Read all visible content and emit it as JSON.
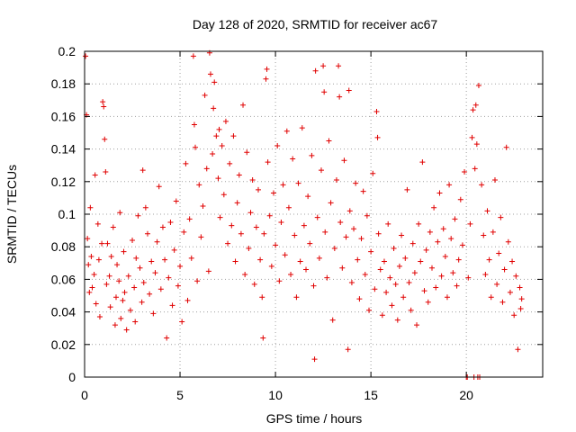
{
  "chart_data": {
    "type": "scatter",
    "title": "Day 128 of 2020, SRMTID for receiver ac67",
    "xlabel": "GPS time / hours",
    "ylabel": "SRMTID / TECUs",
    "xlim": [
      0,
      24
    ],
    "ylim": [
      0,
      0.2
    ],
    "x_ticks": [
      0,
      5,
      10,
      15,
      20
    ],
    "x_tick_labels": [
      "0",
      "5",
      "10",
      "15",
      "20"
    ],
    "y_ticks": [
      0,
      0.02,
      0.04,
      0.06,
      0.08,
      0.1,
      0.12,
      0.14,
      0.16,
      0.18,
      0.2
    ],
    "y_tick_labels": [
      "0",
      "0.02",
      "0.04",
      "0.06",
      "0.08",
      "0.1",
      "0.12",
      "0.14",
      "0.16",
      "0.18",
      "0.2"
    ],
    "grid": true,
    "marker": "+",
    "color": "#e00000",
    "series": [
      {
        "name": "SRMTID",
        "points": [
          [
            0.05,
            0.197
          ],
          [
            0.1,
            0.161
          ],
          [
            0.15,
            0.085
          ],
          [
            0.2,
            0.069
          ],
          [
            0.25,
            0.052
          ],
          [
            0.3,
            0.104
          ],
          [
            0.35,
            0.074
          ],
          [
            0.4,
            0.055
          ],
          [
            0.5,
            0.063
          ],
          [
            0.55,
            0.124
          ],
          [
            0.6,
            0.045
          ],
          [
            0.7,
            0.094
          ],
          [
            0.75,
            0.072
          ],
          [
            0.8,
            0.037
          ],
          [
            0.9,
            0.082
          ],
          [
            0.95,
            0.169
          ],
          [
            1.0,
            0.166
          ],
          [
            1.05,
            0.146
          ],
          [
            1.1,
            0.126
          ],
          [
            1.15,
            0.057
          ],
          [
            1.2,
            0.082
          ],
          [
            1.3,
            0.062
          ],
          [
            1.35,
            0.043
          ],
          [
            1.4,
            0.074
          ],
          [
            1.5,
            0.092
          ],
          [
            1.6,
            0.032
          ],
          [
            1.65,
            0.049
          ],
          [
            1.7,
            0.069
          ],
          [
            1.8,
            0.059
          ],
          [
            1.85,
            0.101
          ],
          [
            1.9,
            0.036
          ],
          [
            2.0,
            0.047
          ],
          [
            2.05,
            0.077
          ],
          [
            2.1,
            0.052
          ],
          [
            2.2,
            0.029
          ],
          [
            2.3,
            0.062
          ],
          [
            2.4,
            0.041
          ],
          [
            2.5,
            0.084
          ],
          [
            2.6,
            0.055
          ],
          [
            2.65,
            0.034
          ],
          [
            2.7,
            0.073
          ],
          [
            2.8,
            0.099
          ],
          [
            2.9,
            0.067
          ],
          [
            3.0,
            0.046
          ],
          [
            3.05,
            0.127
          ],
          [
            3.1,
            0.058
          ],
          [
            3.2,
            0.104
          ],
          [
            3.3,
            0.088
          ],
          [
            3.4,
            0.051
          ],
          [
            3.5,
            0.071
          ],
          [
            3.6,
            0.039
          ],
          [
            3.7,
            0.064
          ],
          [
            3.8,
            0.083
          ],
          [
            3.9,
            0.117
          ],
          [
            4.0,
            0.054
          ],
          [
            4.1,
            0.092
          ],
          [
            4.2,
            0.072
          ],
          [
            4.3,
            0.024
          ],
          [
            4.4,
            0.061
          ],
          [
            4.5,
            0.095
          ],
          [
            4.6,
            0.044
          ],
          [
            4.7,
            0.078
          ],
          [
            4.8,
            0.108
          ],
          [
            4.9,
            0.056
          ],
          [
            5.0,
            0.068
          ],
          [
            5.1,
            0.034
          ],
          [
            5.2,
            0.089
          ],
          [
            5.3,
            0.131
          ],
          [
            5.4,
            0.047
          ],
          [
            5.5,
            0.097
          ],
          [
            5.6,
            0.073
          ],
          [
            5.7,
            0.197
          ],
          [
            5.75,
            0.155
          ],
          [
            5.8,
            0.141
          ],
          [
            5.9,
            0.059
          ],
          [
            6.0,
            0.118
          ],
          [
            6.1,
            0.086
          ],
          [
            6.2,
            0.105
          ],
          [
            6.3,
            0.173
          ],
          [
            6.4,
            0.128
          ],
          [
            6.5,
            0.065
          ],
          [
            6.55,
            0.199
          ],
          [
            6.6,
            0.186
          ],
          [
            6.7,
            0.137
          ],
          [
            6.75,
            0.165
          ],
          [
            6.8,
            0.181
          ],
          [
            6.9,
            0.148
          ],
          [
            7.0,
            0.122
          ],
          [
            7.05,
            0.152
          ],
          [
            7.1,
            0.098
          ],
          [
            7.2,
            0.142
          ],
          [
            7.3,
            0.112
          ],
          [
            7.4,
            0.157
          ],
          [
            7.5,
            0.082
          ],
          [
            7.6,
            0.131
          ],
          [
            7.7,
            0.093
          ],
          [
            7.8,
            0.148
          ],
          [
            7.9,
            0.071
          ],
          [
            8.0,
            0.107
          ],
          [
            8.1,
            0.124
          ],
          [
            8.2,
            0.088
          ],
          [
            8.3,
            0.167
          ],
          [
            8.4,
            0.063
          ],
          [
            8.5,
            0.138
          ],
          [
            8.6,
            0.079
          ],
          [
            8.7,
            0.101
          ],
          [
            8.8,
            0.121
          ],
          [
            8.9,
            0.057
          ],
          [
            9.0,
            0.092
          ],
          [
            9.1,
            0.115
          ],
          [
            9.2,
            0.072
          ],
          [
            9.3,
            0.049
          ],
          [
            9.35,
            0.024
          ],
          [
            9.4,
            0.088
          ],
          [
            9.5,
            0.183
          ],
          [
            9.55,
            0.189
          ],
          [
            9.6,
            0.132
          ],
          [
            9.7,
            0.099
          ],
          [
            9.8,
            0.068
          ],
          [
            9.9,
            0.113
          ],
          [
            10.0,
            0.081
          ],
          [
            10.1,
            0.142
          ],
          [
            10.2,
            0.059
          ],
          [
            10.3,
            0.095
          ],
          [
            10.4,
            0.118
          ],
          [
            10.5,
            0.075
          ],
          [
            10.6,
            0.151
          ],
          [
            10.7,
            0.104
          ],
          [
            10.8,
            0.063
          ],
          [
            10.9,
            0.134
          ],
          [
            11.0,
            0.087
          ],
          [
            11.1,
            0.049
          ],
          [
            11.2,
            0.119
          ],
          [
            11.3,
            0.071
          ],
          [
            11.4,
            0.153
          ],
          [
            11.5,
            0.093
          ],
          [
            11.6,
            0.066
          ],
          [
            11.7,
            0.111
          ],
          [
            11.8,
            0.082
          ],
          [
            11.9,
            0.136
          ],
          [
            12.0,
            0.056
          ],
          [
            12.05,
            0.011
          ],
          [
            12.1,
            0.188
          ],
          [
            12.2,
            0.098
          ],
          [
            12.3,
            0.073
          ],
          [
            12.4,
            0.127
          ],
          [
            12.5,
            0.191
          ],
          [
            12.55,
            0.175
          ],
          [
            12.6,
            0.089
          ],
          [
            12.7,
            0.061
          ],
          [
            12.8,
            0.145
          ],
          [
            12.9,
            0.107
          ],
          [
            13.0,
            0.035
          ],
          [
            13.1,
            0.079
          ],
          [
            13.2,
            0.121
          ],
          [
            13.3,
            0.191
          ],
          [
            13.35,
            0.172
          ],
          [
            13.4,
            0.095
          ],
          [
            13.5,
            0.067
          ],
          [
            13.6,
            0.133
          ],
          [
            13.7,
            0.086
          ],
          [
            13.8,
            0.017
          ],
          [
            13.85,
            0.176
          ],
          [
            13.9,
            0.102
          ],
          [
            14.0,
            0.058
          ],
          [
            14.1,
            0.091
          ],
          [
            14.2,
            0.119
          ],
          [
            14.3,
            0.072
          ],
          [
            14.4,
            0.048
          ],
          [
            14.5,
            0.085
          ],
          [
            14.6,
            0.114
          ],
          [
            14.7,
            0.063
          ],
          [
            14.8,
            0.099
          ],
          [
            14.9,
            0.041
          ],
          [
            15.0,
            0.077
          ],
          [
            15.1,
            0.125
          ],
          [
            15.2,
            0.054
          ],
          [
            15.3,
            0.163
          ],
          [
            15.35,
            0.147
          ],
          [
            15.4,
            0.088
          ],
          [
            15.5,
            0.066
          ],
          [
            15.6,
            0.038
          ],
          [
            15.7,
            0.071
          ],
          [
            15.8,
            0.052
          ],
          [
            15.9,
            0.094
          ],
          [
            16.0,
            0.061
          ],
          [
            16.1,
            0.044
          ],
          [
            16.2,
            0.079
          ],
          [
            16.3,
            0.057
          ],
          [
            16.4,
            0.035
          ],
          [
            16.5,
            0.068
          ],
          [
            16.6,
            0.087
          ],
          [
            16.7,
            0.049
          ],
          [
            16.8,
            0.073
          ],
          [
            16.9,
            0.115
          ],
          [
            17.0,
            0.058
          ],
          [
            17.1,
            0.041
          ],
          [
            17.2,
            0.082
          ],
          [
            17.3,
            0.064
          ],
          [
            17.4,
            0.032
          ],
          [
            17.5,
            0.094
          ],
          [
            17.6,
            0.071
          ],
          [
            17.7,
            0.132
          ],
          [
            17.8,
            0.053
          ],
          [
            17.9,
            0.078
          ],
          [
            18.0,
            0.046
          ],
          [
            18.1,
            0.089
          ],
          [
            18.2,
            0.067
          ],
          [
            18.3,
            0.104
          ],
          [
            18.4,
            0.055
          ],
          [
            18.5,
            0.083
          ],
          [
            18.6,
            0.113
          ],
          [
            18.7,
            0.062
          ],
          [
            18.8,
            0.091
          ],
          [
            18.9,
            0.074
          ],
          [
            19.0,
            0.049
          ],
          [
            19.1,
            0.118
          ],
          [
            19.2,
            0.085
          ],
          [
            19.3,
            0.064
          ],
          [
            19.4,
            0.097
          ],
          [
            19.5,
            0.056
          ],
          [
            19.6,
            0.072
          ],
          [
            19.7,
            0.109
          ],
          [
            19.8,
            0.081
          ],
          [
            19.9,
            0.126
          ],
          [
            20.0,
            0.0
          ],
          [
            20.05,
            0.0
          ],
          [
            20.1,
            0.061
          ],
          [
            20.2,
            0.094
          ],
          [
            20.3,
            0.147
          ],
          [
            20.35,
            0.164
          ],
          [
            20.4,
            0.0
          ],
          [
            20.45,
            0.128
          ],
          [
            20.5,
            0.167
          ],
          [
            20.55,
            0.143
          ],
          [
            20.6,
            0.0
          ],
          [
            20.65,
            0.179
          ],
          [
            20.7,
            0.0
          ],
          [
            20.8,
            0.118
          ],
          [
            20.9,
            0.087
          ],
          [
            21.0,
            0.063
          ],
          [
            21.1,
            0.102
          ],
          [
            21.2,
            0.072
          ],
          [
            21.3,
            0.049
          ],
          [
            21.4,
            0.089
          ],
          [
            21.5,
            0.121
          ],
          [
            21.6,
            0.057
          ],
          [
            21.7,
            0.076
          ],
          [
            21.8,
            0.098
          ],
          [
            21.9,
            0.046
          ],
          [
            22.0,
            0.066
          ],
          [
            22.1,
            0.141
          ],
          [
            22.2,
            0.083
          ],
          [
            22.3,
            0.052
          ],
          [
            22.4,
            0.071
          ],
          [
            22.5,
            0.038
          ],
          [
            22.6,
            0.062
          ],
          [
            22.7,
            0.017
          ],
          [
            22.8,
            0.055
          ],
          [
            22.85,
            0.042
          ],
          [
            22.9,
            0.048
          ]
        ]
      }
    ]
  }
}
